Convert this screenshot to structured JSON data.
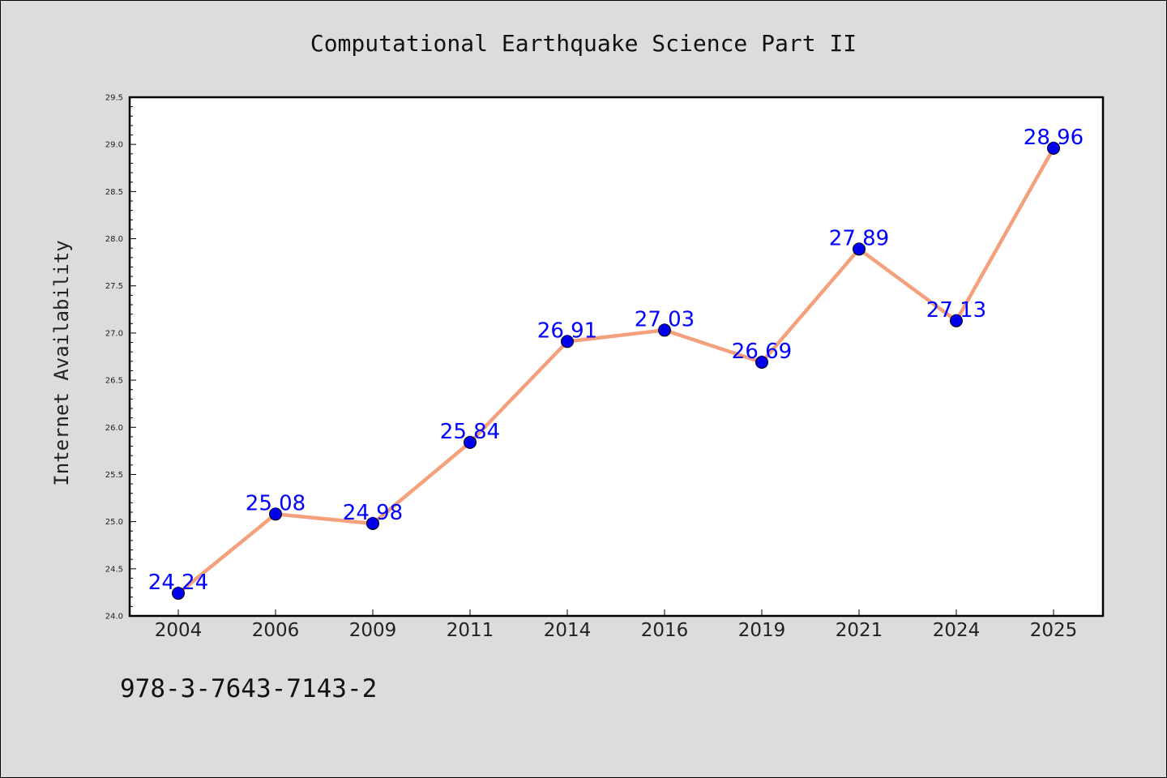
{
  "chart_data": {
    "type": "line",
    "title": "Computational Earthquake Science Part II",
    "xlabel": "",
    "ylabel": "Internet Availability",
    "categories": [
      "2004",
      "2006",
      "2009",
      "2011",
      "2014",
      "2016",
      "2019",
      "2021",
      "2024",
      "2025"
    ],
    "values": [
      24.24,
      25.08,
      24.98,
      25.84,
      26.91,
      27.03,
      26.69,
      27.89,
      27.13,
      28.96
    ],
    "value_labels": [
      "24.24",
      "25.08",
      "24.98",
      "25.84",
      "26.91",
      "27.03",
      "26.69",
      "27.89",
      "27.13",
      "28.96"
    ],
    "ylim": [
      24.0,
      29.5
    ],
    "yticks": [
      "24.0",
      "24.5",
      "25.0",
      "25.5",
      "26.0",
      "26.5",
      "27.0",
      "27.5",
      "28.0",
      "28.5",
      "29.0",
      "29.5"
    ],
    "grid": false,
    "legend": "none",
    "colors": {
      "line": "#f4a07c",
      "marker": "#0000ee",
      "marker_edge": "#000000",
      "data_label": "#0000ff"
    }
  },
  "footer": {
    "code": "978-3-7643-7143-2"
  }
}
